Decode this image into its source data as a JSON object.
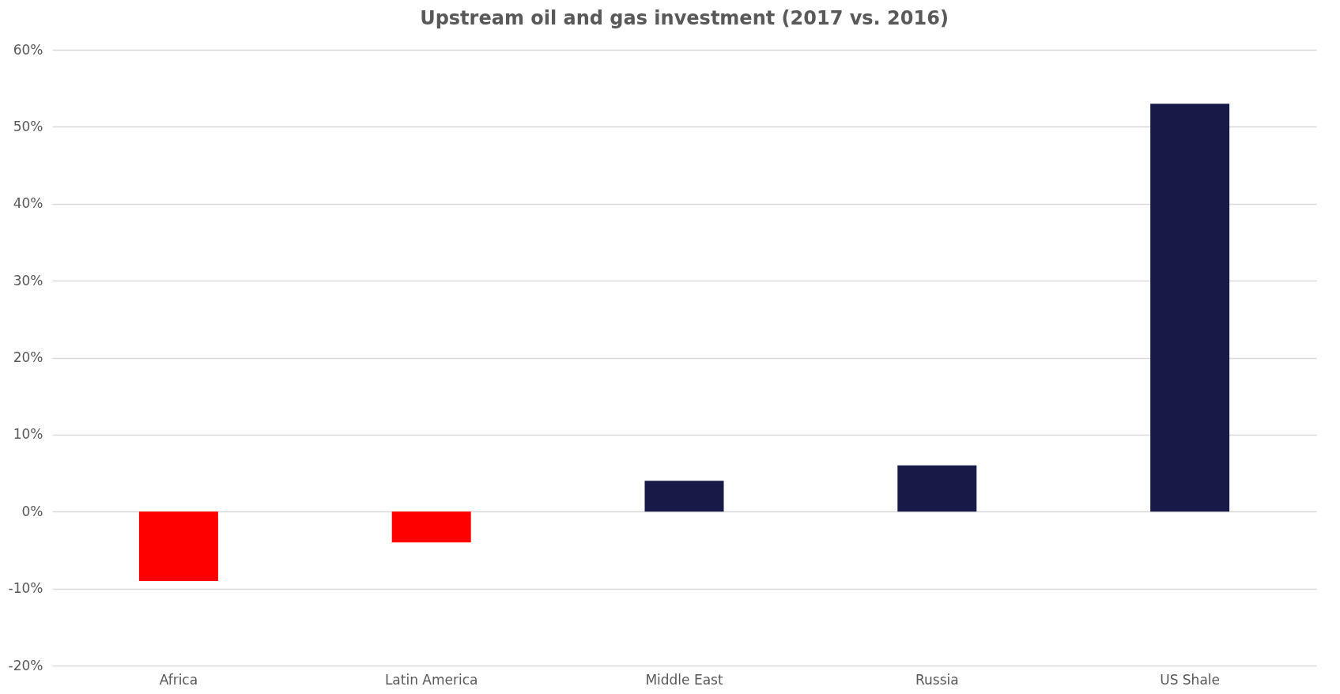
{
  "chart_data": {
    "type": "bar",
    "title": "Upstream oil and gas investment (2017 vs. 2016)",
    "categories": [
      "Africa",
      "Latin America",
      "Middle East",
      "Russia",
      "US Shale"
    ],
    "values": [
      -9,
      -4,
      4,
      6,
      53
    ],
    "colors": [
      "#ff0000",
      "#ff0000",
      "#171a46",
      "#171a46",
      "#171a46"
    ],
    "ylim": [
      -20,
      60
    ],
    "yticks": [
      {
        "value": -20,
        "label": "-20%"
      },
      {
        "value": -10,
        "label": "-10%"
      },
      {
        "value": 0,
        "label": "0%"
      },
      {
        "value": 10,
        "label": "10%"
      },
      {
        "value": 20,
        "label": "20%"
      },
      {
        "value": 30,
        "label": "30%"
      },
      {
        "value": 40,
        "label": "40%"
      },
      {
        "value": 50,
        "label": "50%"
      },
      {
        "value": 60,
        "label": "60%"
      }
    ],
    "grid": "y"
  }
}
